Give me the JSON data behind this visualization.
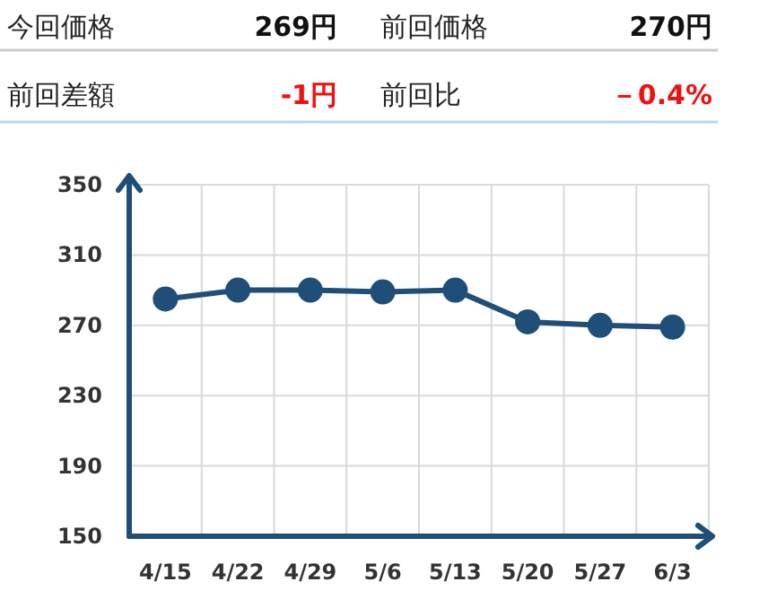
{
  "chart_data": [
    {
      "type": "other",
      "annotations": [
        "今回価格",
        "269円",
        "前回価格",
        "270円",
        "前回差額",
        "-1円",
        "前回比",
        "－0.4%"
      ],
      "colors": [
        "#222222",
        "#111111",
        "#222222",
        "#111111",
        "#222222",
        "#ee1111",
        "#222222",
        "#ee1111"
      ]
    },
    {
      "type": "line",
      "categories": [
        "4/15",
        "4/22",
        "4/29",
        "5/6",
        "5/13",
        "5/20",
        "5/27",
        "6/3"
      ],
      "series": [
        {
          "color": "#1f4e79",
          "values": [
            285,
            290,
            290,
            289,
            290,
            272,
            270,
            269
          ]
        }
      ],
      "ylim": [
        150,
        350
      ],
      "yticks": [
        150,
        190,
        230,
        270,
        310,
        350
      ],
      "grid": true,
      "marker": "circle",
      "line_style": "solid"
    }
  ]
}
